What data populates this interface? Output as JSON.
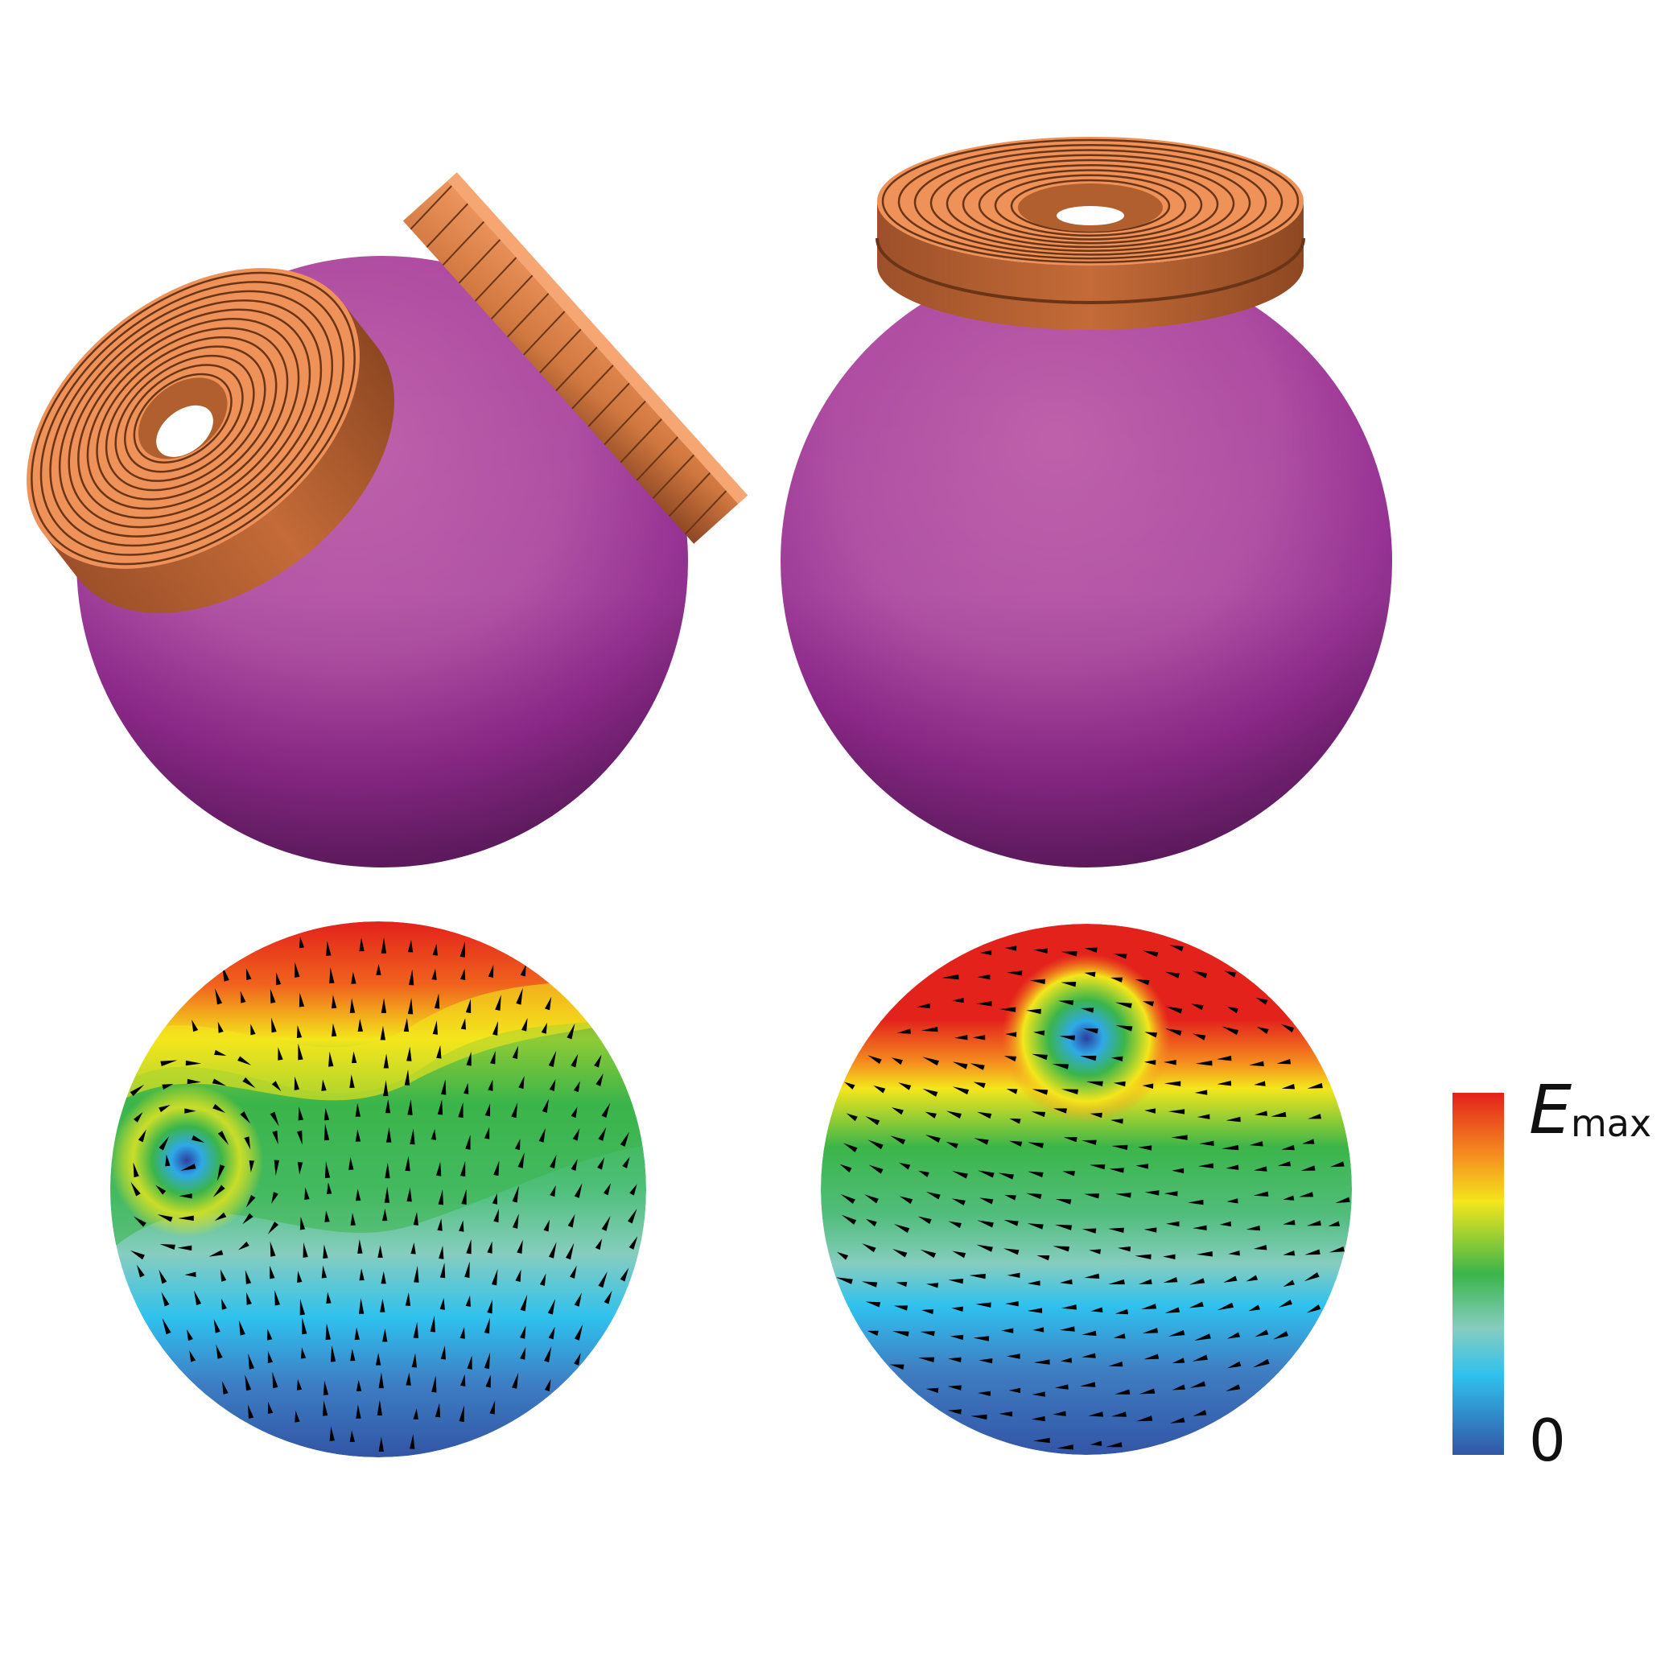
{
  "colors": {
    "sphere_light": "#b95aa6",
    "sphere_mid": "#9a2f94",
    "sphere_dark": "#5e1a5e",
    "coil_light": "#f0945d",
    "coil_dark": "#a0532a",
    "field_red": "#e3221c",
    "field_orange": "#f58b1f",
    "field_yellow": "#f4e61c",
    "field_green": "#3bb54a",
    "field_cyan": "#2fc1ee",
    "field_blue": "#3255a5",
    "arrow": "#000000"
  },
  "panels": [
    {
      "id": "coil-pair-tilted",
      "object": "sphere-with-two-tilted-coils"
    },
    {
      "id": "coil-single-top",
      "object": "sphere-with-single-top-coil"
    },
    {
      "id": "field-map-tilted",
      "object": "electric-field-map-with-vectors"
    },
    {
      "id": "field-map-top",
      "object": "electric-field-map-with-vectors"
    }
  ],
  "colorbar": {
    "max_label_symbol": "E",
    "max_label_sub": "max",
    "min_label": "0",
    "stops": [
      "#e3221c",
      "#f58b1f",
      "#f4e61c",
      "#3bb54a",
      "#86cdbf",
      "#2fc1ee",
      "#3255a5"
    ]
  }
}
